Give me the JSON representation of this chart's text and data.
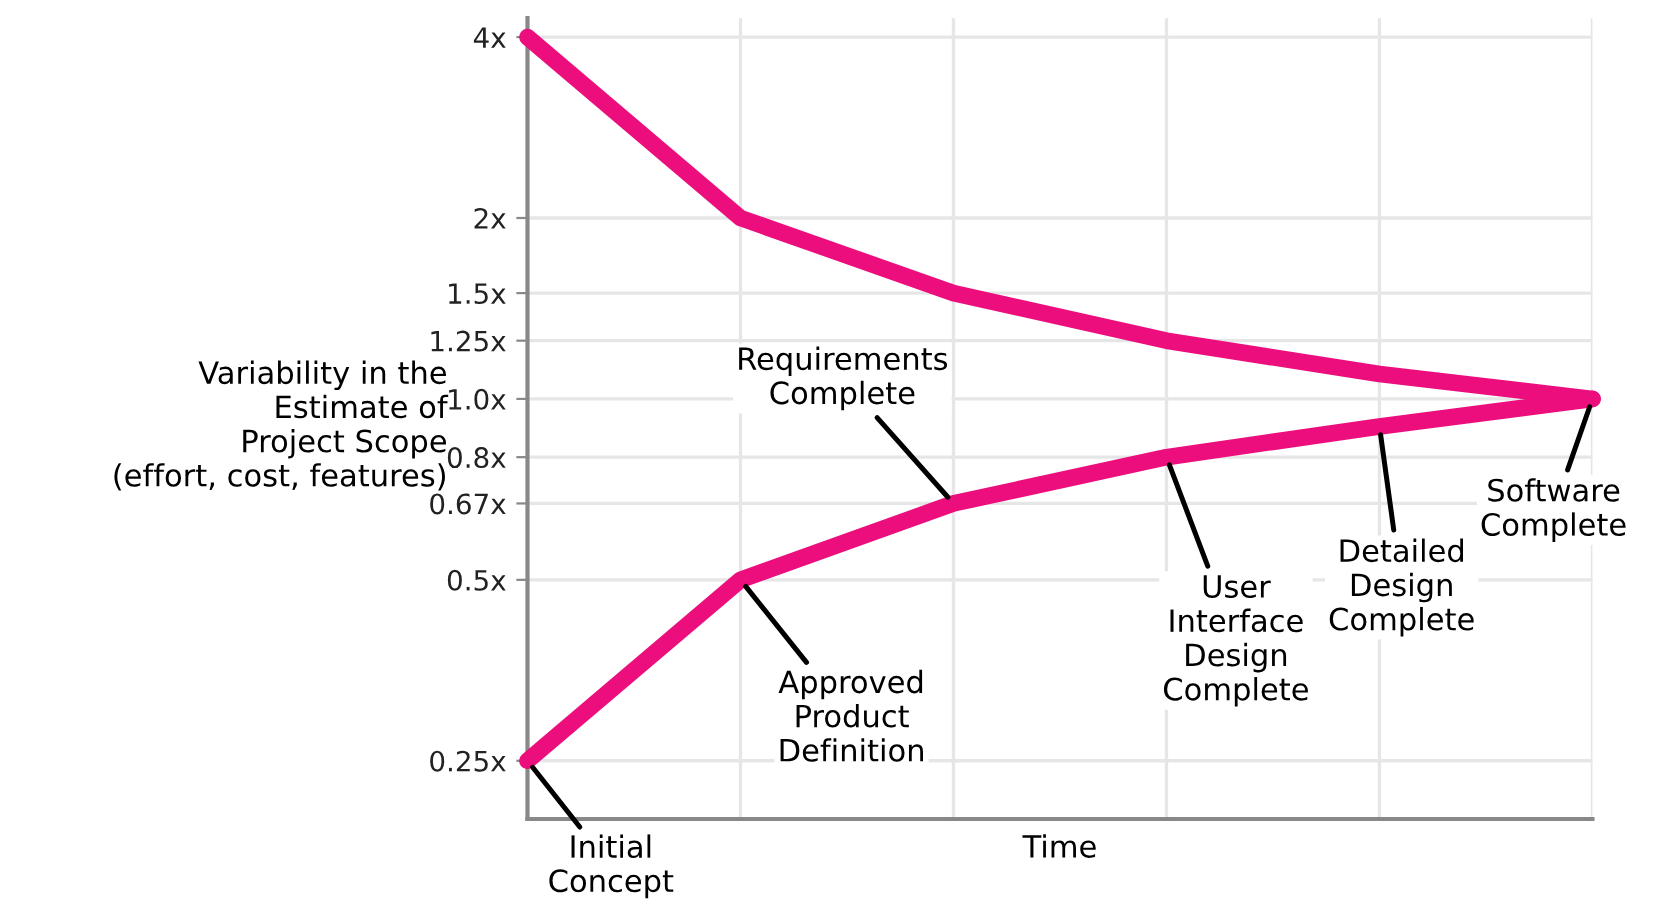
{
  "chart_data": {
    "type": "line",
    "xlabel": "Time",
    "ylabel": "Variability in the\nEstimate of\nProject Scope\n(effort, cost, features)",
    "categories": [
      null,
      null,
      null,
      null,
      null,
      null
    ],
    "series": [
      {
        "color": "#ec0e7c",
        "values": [
          4,
          2,
          1.5,
          1.25,
          1.1,
          1.0
        ]
      },
      {
        "color": "#ec0e7c",
        "values": [
          0.25,
          0.5,
          0.67,
          0.8,
          0.9,
          1.0
        ]
      }
    ],
    "annotations": [
      "Initial\nConcept",
      "Approved\nProduct\nDefinition",
      "Requirements\nComplete",
      "User\nInterface\nDesign\nComplete",
      "Detailed\nDesign\nComplete",
      "Software\nComplete"
    ],
    "log": "y",
    "ylim": [
      0.2,
      4.3
    ],
    "yticks": [
      {
        "value": 0.25,
        "label": "0.25x"
      },
      {
        "value": 0.5,
        "label": "0.5x"
      },
      {
        "value": 0.67,
        "label": "0.67x"
      },
      {
        "value": 0.8,
        "label": "0.8x"
      },
      {
        "value": 1.0,
        "label": "1.0x"
      },
      {
        "value": 1.25,
        "label": "1.25x"
      },
      {
        "value": 1.5,
        "label": "1.5x"
      },
      {
        "value": 2,
        "label": "2x"
      },
      {
        "value": 4,
        "label": "4x"
      }
    ],
    "grid": true,
    "line_style": "solid"
  }
}
